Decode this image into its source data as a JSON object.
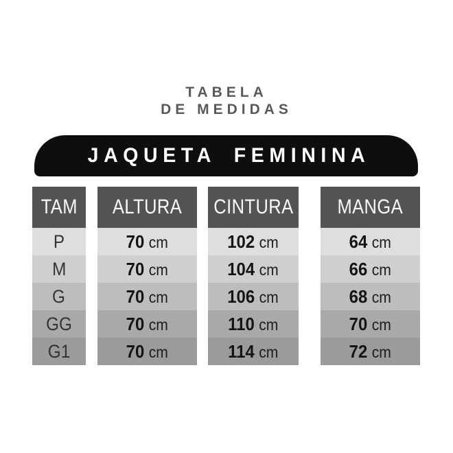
{
  "title": {
    "line1": "TABELA",
    "line2": "DE MEDIDAS"
  },
  "banner": {
    "label": "JAQUETA FEMININA"
  },
  "table": {
    "columns": [
      {
        "label": "TAM"
      },
      {
        "label": "ALTURA"
      },
      {
        "label": "CINTURA"
      },
      {
        "label": "MANGA"
      }
    ],
    "unit": "cm",
    "rows": [
      {
        "size": "P",
        "altura": "70",
        "cintura": "102",
        "manga": "64",
        "bg": "#dedede"
      },
      {
        "size": "M",
        "altura": "70",
        "cintura": "104",
        "manga": "66",
        "bg": "#cfcfcf"
      },
      {
        "size": "G",
        "altura": "70",
        "cintura": "106",
        "manga": "68",
        "bg": "#bdbdbd"
      },
      {
        "size": "GG",
        "altura": "70",
        "cintura": "110",
        "manga": "70",
        "bg": "#a9a9a9"
      },
      {
        "size": "G1",
        "altura": "70",
        "cintura": "114",
        "manga": "72",
        "bg": "#9b9b9b"
      }
    ]
  },
  "colors": {
    "background": "#ffffff",
    "title_text": "#59595b",
    "banner_bg": "#0e0e0e",
    "banner_text": "#ffffff",
    "header_bg": "#545456",
    "header_text": "#fafafa",
    "value_text": "#141414"
  },
  "chart_data": {
    "type": "table",
    "title": "TABELA DE MEDIDAS",
    "subtitle": "JAQUETA FEMININA",
    "columns": [
      "TAM",
      "ALTURA",
      "CINTURA",
      "MANGA"
    ],
    "unit": "cm",
    "rows": [
      [
        "P",
        70,
        102,
        64
      ],
      [
        "M",
        70,
        104,
        66
      ],
      [
        "G",
        70,
        106,
        68
      ],
      [
        "GG",
        70,
        110,
        70
      ],
      [
        "G1",
        70,
        114,
        72
      ]
    ]
  }
}
